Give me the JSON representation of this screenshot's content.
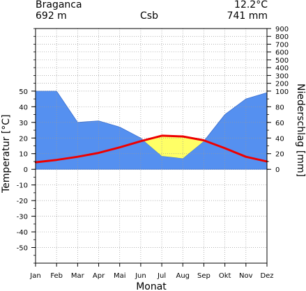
{
  "header": {
    "station": "Braganca",
    "elevation": "692 m",
    "climate_class": "Csb",
    "mean_temp": "12.2°C",
    "annual_precip": "741 mm"
  },
  "chart_data": {
    "type": "line",
    "title": "Braganca",
    "xlabel": "Monat",
    "ylabel_left": "Temperatur [°C]",
    "ylabel_right": "Niederschlag [mm]",
    "categories": [
      "Jan",
      "Feb",
      "Mar",
      "Apr",
      "Mai",
      "Jun",
      "Jul",
      "Aug",
      "Sep",
      "Okt",
      "Nov",
      "Dez"
    ],
    "left_ticks": [
      50,
      40,
      30,
      20,
      10,
      0,
      -10,
      -20,
      -30,
      -40,
      -50
    ],
    "right_ticks": [
      900,
      800,
      700,
      600,
      500,
      400,
      300,
      200,
      100,
      80,
      60,
      40,
      20,
      0
    ],
    "series": [
      {
        "values": [
          4.5,
          6.0,
          8.0,
          10.5,
          14.0,
          18.0,
          21.5,
          21.0,
          18.5,
          13.5,
          8.0,
          5.0
        ],
        "color": "#ee0000"
      },
      {
        "values": [
          100,
          100,
          60,
          62,
          54,
          40,
          17,
          14,
          36,
          70,
          90,
          98
        ],
        "color": "#5590f0"
      }
    ],
    "ylim_left": [
      -60,
      90
    ],
    "grid": true,
    "colors": {
      "precip_fill": "#5590f0",
      "dry_fill": "#ffff66",
      "temp_line": "#ee0000",
      "grid": "#999999"
    }
  }
}
